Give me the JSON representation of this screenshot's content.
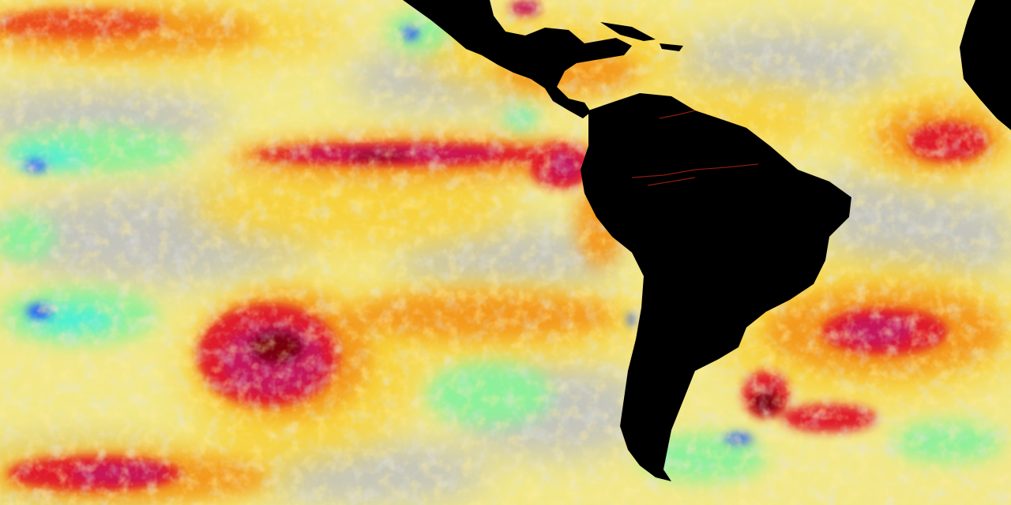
{
  "map": {
    "kind": "sea-surface-temperature-anomaly",
    "region": "eastern-pacific-and-south-america",
    "labels_visible": false,
    "colors": {
      "land": "#000000",
      "neutral": "#c4c4bc",
      "pale_yellow": "#f2e88a",
      "yellow": "#f7d23c",
      "orange": "#f39a1e",
      "red_orange": "#ec4d1c",
      "red": "#e01e2c",
      "magenta": "#c8125a",
      "dark_red": "#7a0010",
      "green": "#8ef09a",
      "cyan": "#38f0d8",
      "blue": "#2050ff",
      "river": "#8a1a10"
    }
  }
}
